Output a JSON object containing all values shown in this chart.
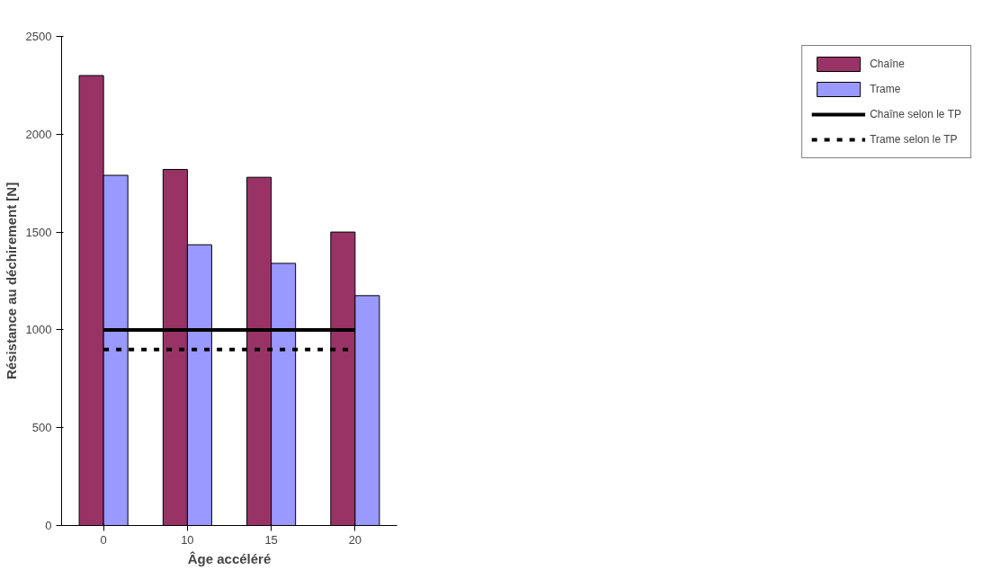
{
  "chart_data": {
    "type": "bar",
    "xlabel": "Âge accéléré",
    "ylabel": "Résistance au déchirement [N]",
    "categories": [
      "0",
      "10",
      "15",
      "20"
    ],
    "series": [
      {
        "name": "Chaîne",
        "color": "#993366",
        "values": [
          2300,
          1820,
          1780,
          1500
        ]
      },
      {
        "name": "Trame",
        "color": "#9999ff",
        "values": [
          1790,
          1435,
          1340,
          1175
        ]
      },
      {
        "name": "Chaîne selon le TP",
        "type": "line",
        "color": "#000000",
        "line_style": "solid",
        "values": [
          1000,
          1000,
          1000,
          1000
        ]
      },
      {
        "name": "Trame selon le TP",
        "type": "line",
        "color": "#000000",
        "line_style": "dashed",
        "values": [
          900,
          900,
          900,
          900
        ]
      }
    ],
    "ylim": [
      0,
      2500
    ],
    "yticks": [
      0,
      500,
      1000,
      1500,
      2000,
      2500
    ],
    "grid": false,
    "legend": "right"
  }
}
